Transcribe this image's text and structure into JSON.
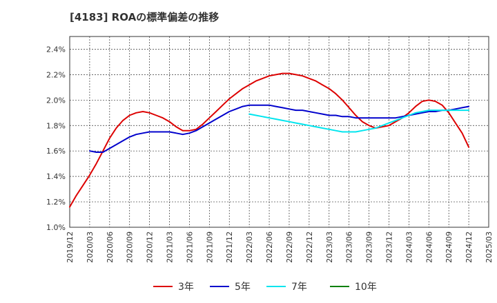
{
  "title": "[4183]  ROAの標準偏差の推移",
  "chart_data": {
    "type": "line",
    "title": "[4183]  ROAの標準偏差の推移",
    "xlabel": "",
    "ylabel": "",
    "x_ticks": [
      "2019/12",
      "2020/03",
      "2020/06",
      "2020/09",
      "2020/12",
      "2021/03",
      "2021/06",
      "2021/09",
      "2021/12",
      "2022/03",
      "2022/06",
      "2022/09",
      "2022/12",
      "2023/03",
      "2023/06",
      "2023/09",
      "2023/12",
      "2024/03",
      "2024/06",
      "2024/09",
      "2024/12",
      "2025/03"
    ],
    "y_ticks": [
      "1.0%",
      "1.2%",
      "1.4%",
      "1.6%",
      "1.8%",
      "2.0%",
      "2.2%",
      "2.4%"
    ],
    "ylim": [
      1.0,
      2.5
    ],
    "y_unit": "%",
    "grid": true,
    "legend_position": "bottom",
    "series": [
      {
        "name": "3年",
        "color": "#dd0000",
        "x": [
          "2019/12",
          "2020/01",
          "2020/02",
          "2020/03",
          "2020/04",
          "2020/05",
          "2020/06",
          "2020/07",
          "2020/08",
          "2020/09",
          "2020/10",
          "2020/11",
          "2020/12",
          "2021/01",
          "2021/02",
          "2021/03",
          "2021/04",
          "2021/05",
          "2021/06",
          "2021/07",
          "2021/08",
          "2021/09",
          "2021/10",
          "2021/11",
          "2021/12",
          "2022/01",
          "2022/02",
          "2022/03",
          "2022/04",
          "2022/05",
          "2022/06",
          "2022/07",
          "2022/08",
          "2022/09",
          "2022/10",
          "2022/11",
          "2022/12",
          "2023/01",
          "2023/02",
          "2023/03",
          "2023/04",
          "2023/05",
          "2023/06",
          "2023/07",
          "2023/08",
          "2023/09",
          "2023/10",
          "2023/11",
          "2023/12",
          "2024/01",
          "2024/02",
          "2024/03",
          "2024/04",
          "2024/05",
          "2024/06",
          "2024/07",
          "2024/08",
          "2024/09",
          "2024/10",
          "2024/11",
          "2024/12"
        ],
        "values": [
          1.16,
          1.25,
          1.33,
          1.41,
          1.5,
          1.6,
          1.7,
          1.78,
          1.84,
          1.88,
          1.9,
          1.91,
          1.9,
          1.88,
          1.86,
          1.83,
          1.79,
          1.76,
          1.76,
          1.77,
          1.81,
          1.86,
          1.91,
          1.96,
          2.01,
          2.05,
          2.09,
          2.12,
          2.15,
          2.17,
          2.19,
          2.2,
          2.21,
          2.21,
          2.2,
          2.19,
          2.17,
          2.15,
          2.12,
          2.09,
          2.05,
          2.0,
          1.94,
          1.88,
          1.83,
          1.8,
          1.78,
          1.79,
          1.8,
          1.83,
          1.86,
          1.9,
          1.95,
          1.99,
          2.0,
          1.99,
          1.96,
          1.9,
          1.82,
          1.74,
          1.63
        ]
      },
      {
        "name": "5年",
        "color": "#0000cc",
        "x": [
          "2020/03",
          "2020/04",
          "2020/05",
          "2020/06",
          "2020/07",
          "2020/08",
          "2020/09",
          "2020/10",
          "2020/11",
          "2020/12",
          "2021/01",
          "2021/02",
          "2021/03",
          "2021/04",
          "2021/05",
          "2021/06",
          "2021/07",
          "2021/08",
          "2021/09",
          "2021/10",
          "2021/11",
          "2021/12",
          "2022/01",
          "2022/02",
          "2022/03",
          "2022/04",
          "2022/05",
          "2022/06",
          "2022/07",
          "2022/08",
          "2022/09",
          "2022/10",
          "2022/11",
          "2022/12",
          "2023/01",
          "2023/02",
          "2023/03",
          "2023/04",
          "2023/05",
          "2023/06",
          "2023/07",
          "2023/08",
          "2023/09",
          "2023/10",
          "2023/11",
          "2023/12",
          "2024/01",
          "2024/02",
          "2024/03",
          "2024/04",
          "2024/05",
          "2024/06",
          "2024/07",
          "2024/08",
          "2024/09",
          "2024/10",
          "2024/11",
          "2024/12"
        ],
        "values": [
          1.6,
          1.59,
          1.59,
          1.62,
          1.65,
          1.68,
          1.71,
          1.73,
          1.74,
          1.75,
          1.75,
          1.75,
          1.75,
          1.74,
          1.73,
          1.74,
          1.76,
          1.79,
          1.82,
          1.85,
          1.88,
          1.91,
          1.93,
          1.95,
          1.96,
          1.96,
          1.96,
          1.96,
          1.95,
          1.94,
          1.93,
          1.92,
          1.92,
          1.91,
          1.9,
          1.89,
          1.88,
          1.88,
          1.87,
          1.87,
          1.86,
          1.86,
          1.86,
          1.86,
          1.86,
          1.86,
          1.86,
          1.87,
          1.88,
          1.89,
          1.9,
          1.91,
          1.91,
          1.92,
          1.92,
          1.93,
          1.94,
          1.95
        ]
      },
      {
        "name": "7年",
        "color": "#00e5ee",
        "x": [
          "2022/03",
          "2022/04",
          "2022/05",
          "2022/06",
          "2022/07",
          "2022/08",
          "2022/09",
          "2022/10",
          "2022/11",
          "2022/12",
          "2023/01",
          "2023/02",
          "2023/03",
          "2023/04",
          "2023/05",
          "2023/06",
          "2023/07",
          "2023/08",
          "2023/09",
          "2023/10",
          "2023/11",
          "2023/12",
          "2024/01",
          "2024/02",
          "2024/03",
          "2024/04",
          "2024/05",
          "2024/06",
          "2024/07",
          "2024/08",
          "2024/09",
          "2024/10",
          "2024/11",
          "2024/12"
        ],
        "values": [
          1.89,
          1.88,
          1.87,
          1.86,
          1.85,
          1.84,
          1.83,
          1.82,
          1.81,
          1.8,
          1.79,
          1.78,
          1.77,
          1.76,
          1.75,
          1.75,
          1.75,
          1.76,
          1.77,
          1.78,
          1.8,
          1.82,
          1.84,
          1.86,
          1.88,
          1.9,
          1.91,
          1.92,
          1.92,
          1.92,
          1.92,
          1.92,
          1.92,
          1.92
        ]
      },
      {
        "name": "10年",
        "color": "#008000",
        "x": [],
        "values": []
      }
    ]
  }
}
